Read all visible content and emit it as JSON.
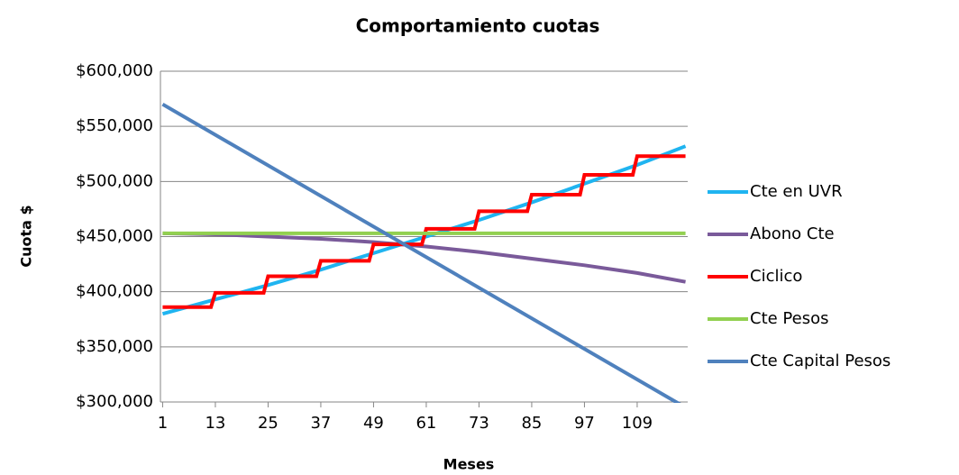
{
  "chart_data": {
    "type": "line",
    "title": "Comportamiento cuotas",
    "x_label": "Meses",
    "y_label": "Cuota $",
    "xlim": [
      0.5,
      120.5
    ],
    "xticks": [
      1,
      13,
      25,
      37,
      49,
      61,
      73,
      85,
      97,
      109
    ],
    "ylim": [
      300000,
      600000
    ],
    "yticks": [
      {
        "value": 300000,
        "label": "$300,000"
      },
      {
        "value": 350000,
        "label": "$350,000"
      },
      {
        "value": 400000,
        "label": "$400,000"
      },
      {
        "value": 450000,
        "label": "$450,000"
      },
      {
        "value": 500000,
        "label": "$500,000"
      },
      {
        "value": 550000,
        "label": "$550,000"
      },
      {
        "value": 600000,
        "label": "$600,000"
      }
    ],
    "grid": true,
    "legend": "right",
    "series": [
      {
        "name": "Cte en UVR",
        "color": "#1fb4f0",
        "x": [
          1,
          13,
          25,
          37,
          49,
          61,
          73,
          85,
          97,
          109,
          120
        ],
        "values": [
          380000,
          393000,
          406000,
          420000,
          435000,
          450000,
          465000,
          481000,
          498000,
          515000,
          532000
        ]
      },
      {
        "name": "Abono Cte",
        "color": "#7a5a9a",
        "x": [
          1,
          13,
          25,
          37,
          49,
          61,
          73,
          85,
          97,
          109,
          120
        ],
        "values": [
          453000,
          452000,
          450000,
          448000,
          445000,
          441000,
          436000,
          430000,
          424000,
          417000,
          409000
        ]
      },
      {
        "name": "Ciclico",
        "color": "#ff0000",
        "x": [
          1,
          12,
          13,
          24,
          25,
          36,
          37,
          48,
          49,
          60,
          61,
          72,
          73,
          84,
          85,
          96,
          97,
          108,
          109,
          120
        ],
        "values": [
          386000,
          386000,
          399000,
          399000,
          414000,
          414000,
          428000,
          428000,
          443000,
          443000,
          457000,
          457000,
          473000,
          473000,
          488000,
          488000,
          506000,
          506000,
          523000,
          523000
        ]
      },
      {
        "name": "Cte Pesos",
        "color": "#92d050",
        "x": [
          1,
          120
        ],
        "values": [
          453000,
          453000
        ]
      },
      {
        "name": "Cte Capital Pesos",
        "color": "#4f81bd",
        "x": [
          1,
          120
        ],
        "values": [
          570000,
          295000
        ]
      }
    ]
  }
}
